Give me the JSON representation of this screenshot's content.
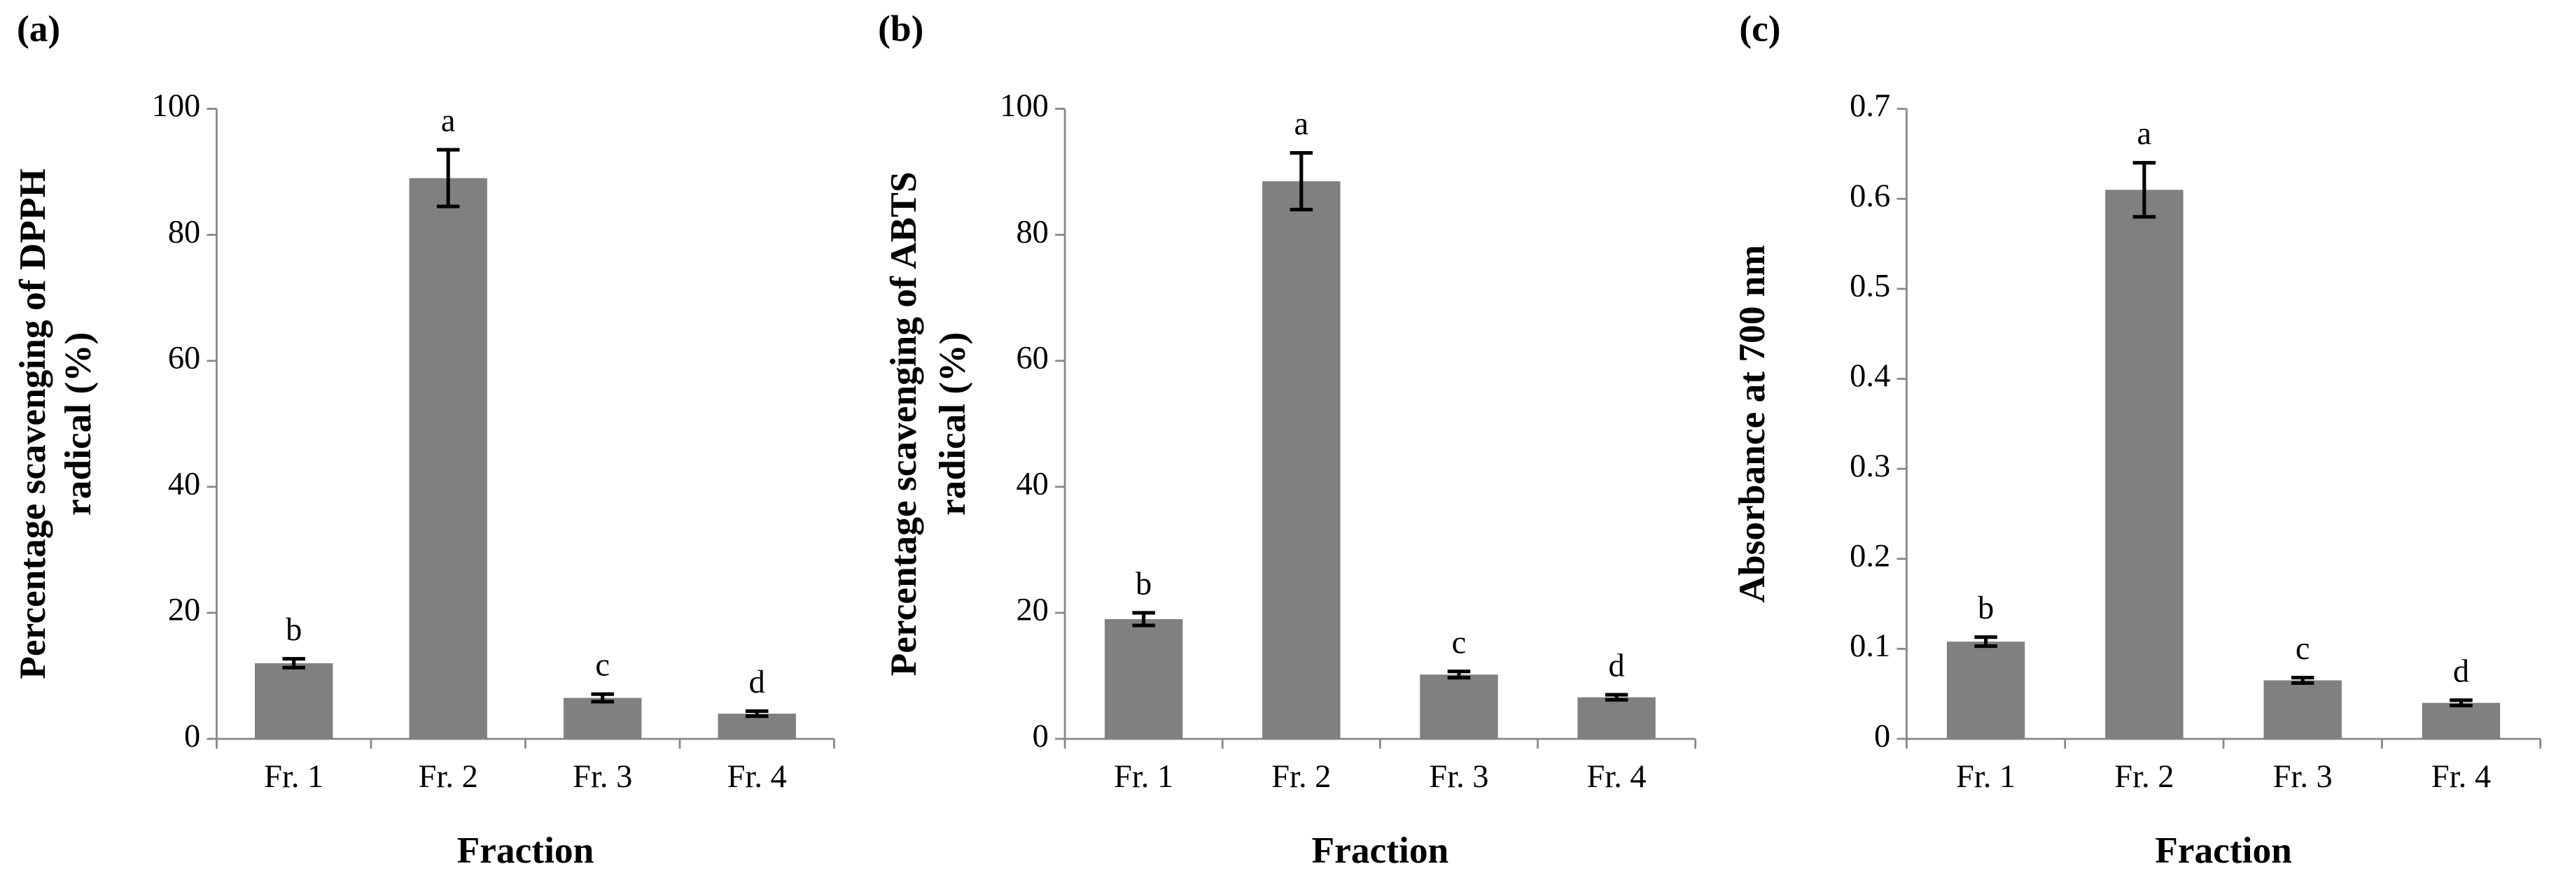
{
  "chart_data": [
    {
      "type": "bar",
      "panel_label": "(a)",
      "y_label": [
        "Percentage scavenging of DPPH",
        "radical (%)"
      ],
      "x_label": "Fraction",
      "categories": [
        "Fr. 1",
        "Fr. 2",
        "Fr. 3",
        "Fr. 4"
      ],
      "values": [
        12,
        89,
        6.5,
        4
      ],
      "errors": [
        0.7,
        4.5,
        0.6,
        0.4
      ],
      "annotations": [
        "b",
        "a",
        "c",
        "d"
      ],
      "color": "#808080",
      "ylim": [
        0,
        100
      ],
      "yticks": [
        0,
        20,
        40,
        60,
        80,
        100
      ]
    },
    {
      "type": "bar",
      "panel_label": "(b)",
      "y_label": [
        "Percentage scavenging of ABTS",
        "radical (%)"
      ],
      "x_label": "Fraction",
      "categories": [
        "Fr. 1",
        "Fr. 2",
        "Fr. 3",
        "Fr. 4"
      ],
      "values": [
        19,
        88.5,
        10.2,
        6.6
      ],
      "errors": [
        1,
        4.5,
        0.5,
        0.4
      ],
      "annotations": [
        "b",
        "a",
        "c",
        "d"
      ],
      "color": "#808080",
      "ylim": [
        0,
        100
      ],
      "yticks": [
        0,
        20,
        40,
        60,
        80,
        100
      ]
    },
    {
      "type": "bar",
      "panel_label": "(c)",
      "y_label": [
        "Absorbance at 700 nm"
      ],
      "x_label": "Fraction",
      "categories": [
        "Fr. 1",
        "Fr. 2",
        "Fr. 3",
        "Fr. 4"
      ],
      "values": [
        0.108,
        0.61,
        0.065,
        0.04
      ],
      "errors": [
        0.005,
        0.03,
        0.003,
        0.003
      ],
      "annotations": [
        "b",
        "a",
        "c",
        "d"
      ],
      "color": "#808080",
      "ylim": [
        0,
        0.7
      ],
      "yticks": [
        0,
        0.1,
        0.2,
        0.3,
        0.4,
        0.5,
        0.6,
        0.7
      ]
    }
  ]
}
